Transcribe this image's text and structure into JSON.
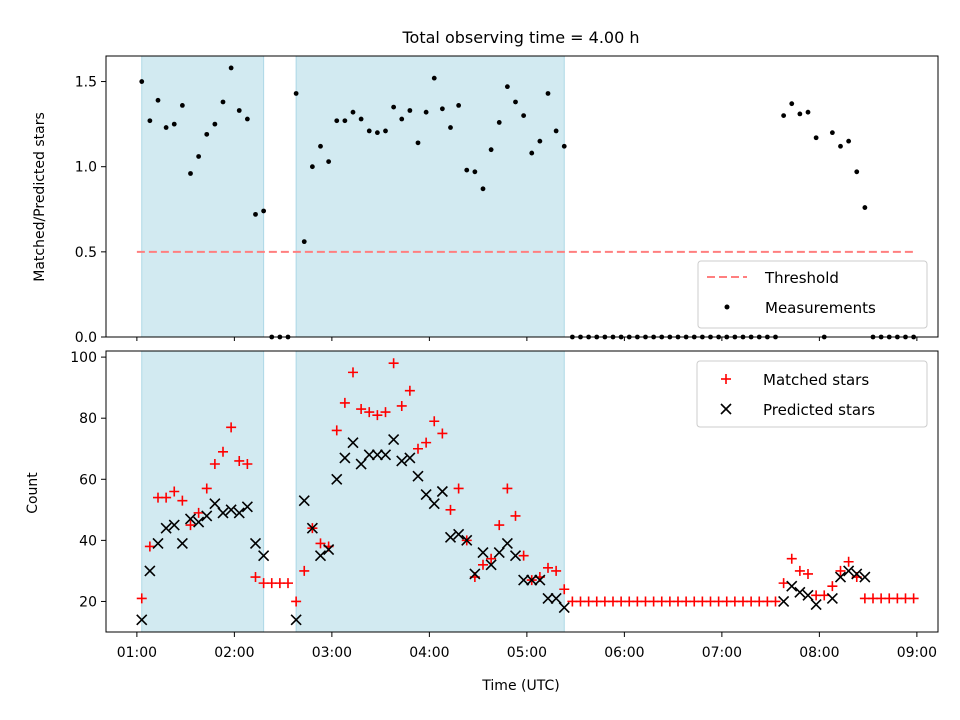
{
  "title": "Total observing time = 4.00 h",
  "colors": {
    "shade": "#add8e6",
    "threshold": "#ff7f7f",
    "measurement": "#000000",
    "matched": "#ff0000",
    "predicted": "#000000"
  },
  "chart_data": [
    {
      "type": "scatter",
      "ylabel": "Matched/Predicted stars",
      "ylim": [
        0,
        1.65
      ],
      "yticks": [
        "0.0",
        "0.5",
        "1.0",
        "1.5"
      ],
      "legend": [
        "Threshold",
        "Measurements"
      ],
      "legend_position": "lower-right",
      "threshold": 0.5,
      "threshold_range": [
        "01:00",
        "09:00"
      ],
      "shaded_spans": [
        [
          "01:03",
          "02:18"
        ],
        [
          "02:38",
          "05:23"
        ]
      ],
      "x_times": [
        "01:03",
        "01:08",
        "01:13",
        "01:18",
        "01:23",
        "01:28",
        "01:33",
        "01:38",
        "01:43",
        "01:48",
        "01:53",
        "01:58",
        "02:03",
        "02:08",
        "02:13",
        "02:18",
        "02:23",
        "02:28",
        "02:33",
        "02:38",
        "02:43",
        "02:48",
        "02:53",
        "02:58",
        "03:03",
        "03:08",
        "03:13",
        "03:18",
        "03:23",
        "03:28",
        "03:33",
        "03:38",
        "03:43",
        "03:48",
        "03:53",
        "03:58",
        "04:03",
        "04:08",
        "04:13",
        "04:18",
        "04:23",
        "04:28",
        "04:33",
        "04:38",
        "04:43",
        "04:48",
        "04:53",
        "04:58",
        "05:03",
        "05:08",
        "05:13",
        "05:18",
        "05:23",
        "05:28",
        "05:33",
        "05:38",
        "05:43",
        "05:48",
        "05:53",
        "05:58",
        "06:03",
        "06:08",
        "06:13",
        "06:18",
        "06:23",
        "06:28",
        "06:33",
        "06:38",
        "06:43",
        "06:48",
        "06:53",
        "06:58",
        "07:03",
        "07:08",
        "07:13",
        "07:18",
        "07:23",
        "07:28",
        "07:33",
        "07:38",
        "07:43",
        "07:48",
        "07:53",
        "07:58",
        "08:03",
        "08:08",
        "08:13",
        "08:18",
        "08:23",
        "08:28",
        "08:33",
        "08:38",
        "08:43",
        "08:48",
        "08:53",
        "08:58"
      ],
      "ratio": [
        1.5,
        1.27,
        1.39,
        1.23,
        1.25,
        1.36,
        0.96,
        1.06,
        1.19,
        1.25,
        1.38,
        1.58,
        1.33,
        1.28,
        0.72,
        0.74,
        0,
        0,
        0,
        1.43,
        0.56,
        1.0,
        1.12,
        1.03,
        1.27,
        1.27,
        1.32,
        1.28,
        1.21,
        1.2,
        1.21,
        1.35,
        1.28,
        1.33,
        1.14,
        1.32,
        1.52,
        1.34,
        1.23,
        1.36,
        0.98,
        0.97,
        0.87,
        1.1,
        1.26,
        1.47,
        1.38,
        1.3,
        1.08,
        1.15,
        1.43,
        1.21,
        1.12,
        0,
        0,
        0,
        0,
        0,
        0,
        0,
        0,
        0,
        0,
        0,
        0,
        0,
        0,
        0,
        0,
        0,
        0,
        0,
        0,
        0,
        0,
        0,
        0,
        0,
        0,
        1.3,
        1.37,
        1.31,
        1.32,
        1.17,
        0,
        1.2,
        1.12,
        1.15,
        0.97,
        0.76,
        0,
        0,
        0,
        0,
        0,
        0
      ]
    },
    {
      "type": "scatter",
      "xlabel": "Time (UTC)",
      "ylabel": "Count",
      "ylim": [
        10,
        102
      ],
      "yticks": [
        "20",
        "40",
        "60",
        "80",
        "100"
      ],
      "xticks": [
        "01:00",
        "02:00",
        "03:00",
        "04:00",
        "05:00",
        "06:00",
        "07:00",
        "08:00",
        "09:00"
      ],
      "xlim": [
        "00:41",
        "09:13"
      ],
      "legend_position": "upper-right",
      "shaded_spans": [
        [
          "01:03",
          "02:18"
        ],
        [
          "02:38",
          "05:23"
        ]
      ],
      "series": [
        {
          "name": "Matched stars",
          "marker": "+",
          "values": [
            21,
            38,
            54,
            54,
            56,
            53,
            45,
            49,
            57,
            65,
            69,
            77,
            66,
            65,
            28,
            26,
            26,
            26,
            26,
            20,
            30,
            44,
            39,
            38,
            76,
            85,
            95,
            83,
            82,
            81,
            82,
            98,
            84,
            89,
            70,
            72,
            79,
            75,
            50,
            57,
            40,
            28,
            32,
            34,
            45,
            57,
            48,
            35,
            27,
            28,
            31,
            30,
            24,
            20,
            20,
            20,
            20,
            20,
            20,
            20,
            20,
            20,
            20,
            20,
            20,
            20,
            20,
            20,
            20,
            20,
            20,
            20,
            20,
            20,
            20,
            20,
            20,
            20,
            20,
            26,
            34,
            30,
            29,
            22,
            22,
            25,
            30,
            33,
            28,
            21,
            21,
            21,
            21,
            21,
            21,
            21
          ]
        },
        {
          "name": "Predicted stars",
          "marker": "x",
          "values": [
            14,
            30,
            39,
            44,
            45,
            39,
            47,
            46,
            48,
            52,
            49,
            50,
            49,
            51,
            39,
            35,
            null,
            null,
            null,
            14,
            53,
            44,
            35,
            37,
            60,
            67,
            72,
            65,
            68,
            68,
            68,
            73,
            66,
            67,
            61,
            55,
            52,
            56,
            41,
            42,
            40,
            29,
            36,
            32,
            36,
            39,
            35,
            27,
            27,
            27,
            21,
            21,
            18,
            null,
            null,
            null,
            null,
            null,
            null,
            null,
            null,
            null,
            null,
            null,
            null,
            null,
            null,
            null,
            null,
            null,
            null,
            null,
            null,
            null,
            null,
            null,
            null,
            null,
            null,
            20,
            25,
            23,
            22,
            19,
            null,
            21,
            28,
            30,
            29,
            28,
            null,
            null,
            null,
            null,
            null,
            null
          ]
        }
      ]
    }
  ]
}
